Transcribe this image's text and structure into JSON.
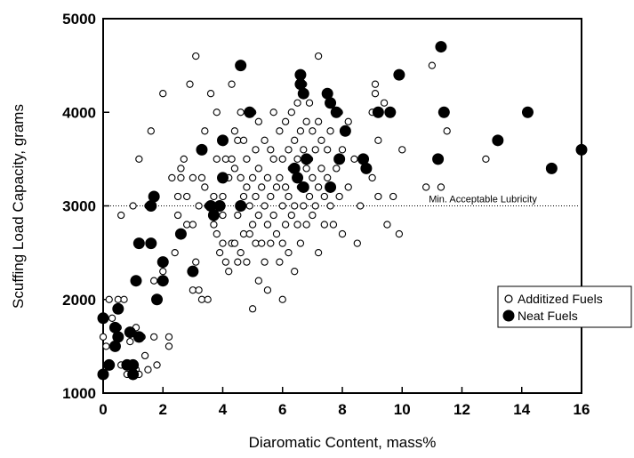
{
  "chart_data": {
    "type": "scatter",
    "xlabel": "Diaromatic Content, mass%",
    "ylabel": "Scuffing Load Capacity, grams",
    "xlim": [
      0,
      16
    ],
    "ylim": [
      1000,
      5000
    ],
    "xticks": [
      0,
      2,
      4,
      6,
      8,
      10,
      12,
      14,
      16
    ],
    "yticks": [
      1000,
      2000,
      3000,
      4000,
      5000
    ],
    "grid": false,
    "legend_position": "right",
    "reference_line": {
      "y": 3000,
      "label": "Min. Acceptable Lubricity",
      "style": "dotted"
    },
    "series": [
      {
        "name": "Additized Fuels",
        "marker": "open-circle",
        "color": "#000000",
        "points": [
          [
            0.0,
            1600
          ],
          [
            0.1,
            1500
          ],
          [
            0.2,
            2000
          ],
          [
            0.3,
            1800
          ],
          [
            0.5,
            2000
          ],
          [
            0.5,
            1700
          ],
          [
            0.6,
            2900
          ],
          [
            0.6,
            1300
          ],
          [
            0.7,
            2000
          ],
          [
            0.8,
            1200
          ],
          [
            0.9,
            1300
          ],
          [
            0.9,
            1550
          ],
          [
            1.0,
            3000
          ],
          [
            1.0,
            1650
          ],
          [
            1.1,
            1700
          ],
          [
            1.1,
            1250
          ],
          [
            1.2,
            1200
          ],
          [
            1.2,
            3500
          ],
          [
            1.3,
            1600
          ],
          [
            1.4,
            1400
          ],
          [
            1.5,
            3000
          ],
          [
            1.5,
            1250
          ],
          [
            1.6,
            3800
          ],
          [
            1.7,
            2200
          ],
          [
            1.7,
            1600
          ],
          [
            1.8,
            1300
          ],
          [
            2.0,
            2300
          ],
          [
            2.0,
            4200
          ],
          [
            2.2,
            1500
          ],
          [
            2.2,
            1600
          ],
          [
            2.3,
            3300
          ],
          [
            2.4,
            2500
          ],
          [
            2.5,
            2900
          ],
          [
            2.5,
            3100
          ],
          [
            2.6,
            3400
          ],
          [
            2.6,
            3300
          ],
          [
            2.7,
            3500
          ],
          [
            2.8,
            3100
          ],
          [
            2.8,
            2800
          ],
          [
            2.9,
            4300
          ],
          [
            3.0,
            3300
          ],
          [
            3.0,
            2800
          ],
          [
            3.0,
            2100
          ],
          [
            3.1,
            4600
          ],
          [
            3.1,
            2400
          ],
          [
            3.2,
            3000
          ],
          [
            3.2,
            2100
          ],
          [
            3.3,
            3300
          ],
          [
            3.3,
            2000
          ],
          [
            3.4,
            3800
          ],
          [
            3.4,
            3200
          ],
          [
            3.5,
            3000
          ],
          [
            3.5,
            2000
          ],
          [
            3.6,
            4200
          ],
          [
            3.6,
            3000
          ],
          [
            3.7,
            3100
          ],
          [
            3.7,
            2800
          ],
          [
            3.8,
            3500
          ],
          [
            3.8,
            4000
          ],
          [
            3.8,
            2700
          ],
          [
            3.9,
            3000
          ],
          [
            3.9,
            2500
          ],
          [
            4.0,
            3100
          ],
          [
            4.0,
            2900
          ],
          [
            4.0,
            2600
          ],
          [
            4.1,
            2400
          ],
          [
            4.1,
            3500
          ],
          [
            4.2,
            3300
          ],
          [
            4.2,
            2300
          ],
          [
            4.3,
            4300
          ],
          [
            4.3,
            3500
          ],
          [
            4.3,
            2600
          ],
          [
            4.4,
            3800
          ],
          [
            4.4,
            3400
          ],
          [
            4.4,
            2600
          ],
          [
            4.5,
            3700
          ],
          [
            4.5,
            2900
          ],
          [
            4.5,
            2400
          ],
          [
            4.6,
            4000
          ],
          [
            4.6,
            3300
          ],
          [
            4.6,
            2500
          ],
          [
            4.7,
            3700
          ],
          [
            4.7,
            3100
          ],
          [
            4.7,
            2700
          ],
          [
            4.8,
            3500
          ],
          [
            4.8,
            3200
          ],
          [
            4.8,
            2400
          ],
          [
            4.9,
            3000
          ],
          [
            4.9,
            2700
          ],
          [
            5.0,
            4000
          ],
          [
            5.0,
            3300
          ],
          [
            5.0,
            2800
          ],
          [
            5.0,
            1900
          ],
          [
            5.1,
            3600
          ],
          [
            5.1,
            3100
          ],
          [
            5.1,
            2600
          ],
          [
            5.2,
            3900
          ],
          [
            5.2,
            3400
          ],
          [
            5.2,
            2900
          ],
          [
            5.2,
            2200
          ],
          [
            5.3,
            3200
          ],
          [
            5.3,
            2600
          ],
          [
            5.4,
            3700
          ],
          [
            5.4,
            3000
          ],
          [
            5.4,
            2400
          ],
          [
            5.5,
            3300
          ],
          [
            5.5,
            2800
          ],
          [
            5.5,
            2100
          ],
          [
            5.6,
            3600
          ],
          [
            5.6,
            3100
          ],
          [
            5.6,
            2600
          ],
          [
            5.7,
            4000
          ],
          [
            5.7,
            3500
          ],
          [
            5.7,
            2900
          ],
          [
            5.8,
            3200
          ],
          [
            5.8,
            2700
          ],
          [
            5.9,
            3800
          ],
          [
            5.9,
            3300
          ],
          [
            5.9,
            2400
          ],
          [
            6.0,
            3500
          ],
          [
            6.0,
            3000
          ],
          [
            6.0,
            2600
          ],
          [
            6.0,
            2000
          ],
          [
            6.1,
            3900
          ],
          [
            6.1,
            3200
          ],
          [
            6.1,
            2800
          ],
          [
            6.2,
            3600
          ],
          [
            6.2,
            3100
          ],
          [
            6.2,
            2500
          ],
          [
            6.3,
            4000
          ],
          [
            6.3,
            3400
          ],
          [
            6.3,
            2900
          ],
          [
            6.4,
            3700
          ],
          [
            6.4,
            3000
          ],
          [
            6.4,
            2300
          ],
          [
            6.5,
            4100
          ],
          [
            6.5,
            3500
          ],
          [
            6.5,
            2800
          ],
          [
            6.6,
            3800
          ],
          [
            6.6,
            3200
          ],
          [
            6.6,
            2600
          ],
          [
            6.7,
            4300
          ],
          [
            6.7,
            3600
          ],
          [
            6.7,
            3000
          ],
          [
            6.8,
            3900
          ],
          [
            6.8,
            3400
          ],
          [
            6.8,
            2800
          ],
          [
            6.9,
            4100
          ],
          [
            6.9,
            3500
          ],
          [
            6.9,
            3100
          ],
          [
            7.0,
            3800
          ],
          [
            7.0,
            3300
          ],
          [
            7.0,
            2900
          ],
          [
            7.1,
            3600
          ],
          [
            7.1,
            3000
          ],
          [
            7.2,
            4600
          ],
          [
            7.2,
            3900
          ],
          [
            7.2,
            3200
          ],
          [
            7.2,
            2500
          ],
          [
            7.3,
            3700
          ],
          [
            7.3,
            3400
          ],
          [
            7.4,
            3100
          ],
          [
            7.4,
            2800
          ],
          [
            7.5,
            3600
          ],
          [
            7.5,
            3300
          ],
          [
            7.6,
            3800
          ],
          [
            7.6,
            3000
          ],
          [
            7.7,
            2800
          ],
          [
            7.8,
            3400
          ],
          [
            7.9,
            4000
          ],
          [
            7.9,
            3100
          ],
          [
            8.0,
            3600
          ],
          [
            8.0,
            2700
          ],
          [
            8.2,
            3900
          ],
          [
            8.2,
            3200
          ],
          [
            8.4,
            3500
          ],
          [
            8.5,
            2600
          ],
          [
            8.6,
            3000
          ],
          [
            8.8,
            3400
          ],
          [
            9.0,
            4000
          ],
          [
            9.0,
            3300
          ],
          [
            9.1,
            4300
          ],
          [
            9.1,
            4200
          ],
          [
            9.2,
            3700
          ],
          [
            9.2,
            3100
          ],
          [
            9.4,
            4100
          ],
          [
            9.5,
            2800
          ],
          [
            9.7,
            3100
          ],
          [
            9.9,
            2700
          ],
          [
            10.0,
            3600
          ],
          [
            10.8,
            3200
          ],
          [
            11.0,
            4500
          ],
          [
            11.3,
            3200
          ],
          [
            11.5,
            3800
          ],
          [
            12.8,
            3500
          ]
        ]
      },
      {
        "name": "Neat Fuels",
        "marker": "filled-circle",
        "color": "#000000",
        "points": [
          [
            0.0,
            1800
          ],
          [
            0.0,
            1200
          ],
          [
            0.2,
            1300
          ],
          [
            0.4,
            1500
          ],
          [
            0.4,
            1700
          ],
          [
            0.5,
            1600
          ],
          [
            0.5,
            1900
          ],
          [
            0.8,
            1300
          ],
          [
            0.9,
            1650
          ],
          [
            1.0,
            1200
          ],
          [
            1.0,
            1300
          ],
          [
            1.1,
            2200
          ],
          [
            1.2,
            1600
          ],
          [
            1.2,
            2600
          ],
          [
            1.6,
            2600
          ],
          [
            1.6,
            3000
          ],
          [
            1.7,
            3100
          ],
          [
            1.8,
            2000
          ],
          [
            2.0,
            2400
          ],
          [
            2.0,
            2200
          ],
          [
            2.6,
            2700
          ],
          [
            3.0,
            2300
          ],
          [
            3.3,
            3600
          ],
          [
            3.6,
            3000
          ],
          [
            3.7,
            2900
          ],
          [
            3.9,
            3000
          ],
          [
            4.0,
            3700
          ],
          [
            4.0,
            3300
          ],
          [
            4.6,
            4500
          ],
          [
            4.6,
            3000
          ],
          [
            4.9,
            4000
          ],
          [
            6.4,
            3400
          ],
          [
            6.5,
            3300
          ],
          [
            6.6,
            4400
          ],
          [
            6.6,
            4300
          ],
          [
            6.7,
            4200
          ],
          [
            6.7,
            3200
          ],
          [
            6.8,
            3500
          ],
          [
            7.5,
            4200
          ],
          [
            7.6,
            4100
          ],
          [
            7.6,
            3200
          ],
          [
            7.8,
            4000
          ],
          [
            7.9,
            3500
          ],
          [
            8.1,
            3800
          ],
          [
            8.7,
            3500
          ],
          [
            8.8,
            3400
          ],
          [
            9.2,
            4000
          ],
          [
            9.6,
            4000
          ],
          [
            9.9,
            4400
          ],
          [
            11.2,
            3500
          ],
          [
            11.3,
            4700
          ],
          [
            11.4,
            4000
          ],
          [
            13.2,
            3700
          ],
          [
            14.2,
            4000
          ],
          [
            15.0,
            3400
          ],
          [
            16.0,
            3600
          ]
        ]
      }
    ]
  }
}
